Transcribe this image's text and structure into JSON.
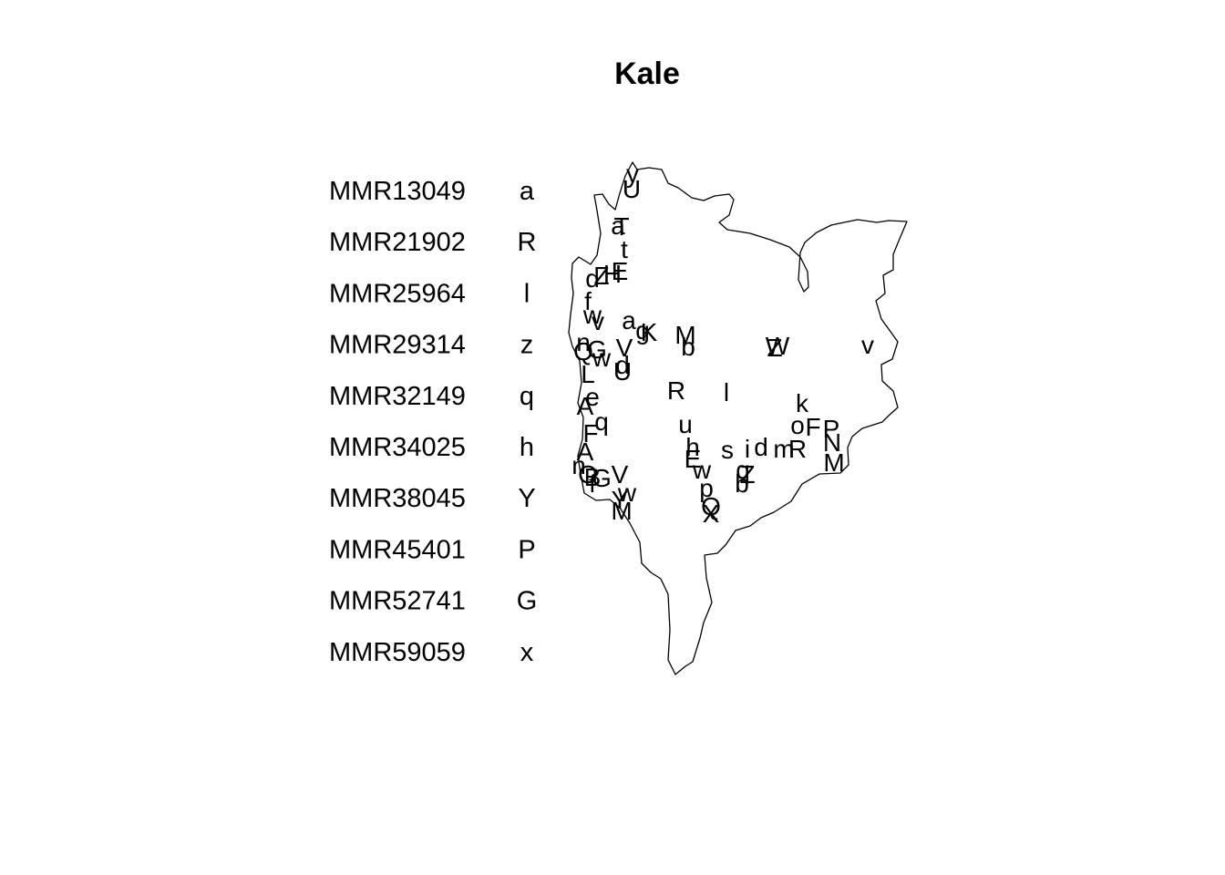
{
  "map": {
    "title": "Kale",
    "legend": [
      {
        "code": "MMR13049",
        "symbol": "a"
      },
      {
        "code": "MMR21902",
        "symbol": "R"
      },
      {
        "code": "MMR25964",
        "symbol": "l"
      },
      {
        "code": "MMR29314",
        "symbol": "z"
      },
      {
        "code": "MMR32149",
        "symbol": "q"
      },
      {
        "code": "MMR34025",
        "symbol": "h"
      },
      {
        "code": "MMR38045",
        "symbol": "Y"
      },
      {
        "code": "MMR45401",
        "symbol": "P"
      },
      {
        "code": "MMR52741",
        "symbol": "G"
      },
      {
        "code": "MMR59059",
        "symbol": "x"
      }
    ],
    "marker_symbols": [
      "y",
      "U",
      "T",
      "a",
      "t",
      "E",
      "H",
      "d",
      "Z",
      "f",
      "w",
      "v",
      "a",
      "Q",
      "G",
      "K",
      "g",
      "M",
      "b",
      "Z",
      "W",
      "v",
      "n",
      "V",
      "w",
      "d",
      "U",
      "L",
      "R",
      "l",
      "e",
      "k",
      "P",
      "A",
      "q",
      "u",
      "o",
      "F",
      "R",
      "N",
      "A",
      "h",
      "s",
      "i",
      "d",
      "w",
      "m",
      "n",
      "M",
      "O",
      "B",
      "G",
      "V",
      "E",
      "Z",
      "f",
      "q",
      "b",
      "p",
      "w",
      "Y",
      "X",
      "Q",
      "M",
      "F"
    ],
    "boundary_color": "#000000",
    "background": "#ffffff",
    "text_color": "#000000"
  }
}
